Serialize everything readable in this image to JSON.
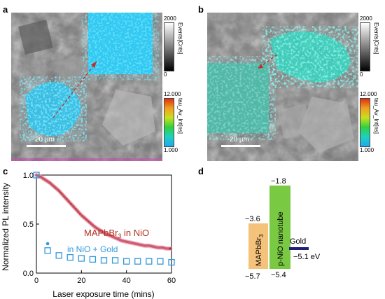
{
  "panels": {
    "a": "a",
    "b": "b",
    "c": "c",
    "d": "d"
  },
  "colorbars": {
    "events_max": "2000",
    "events_min": "0",
    "events_title": "Events[Cnts]",
    "tau_max": "12.000",
    "tau_min": "1.000",
    "tau_title": "tau_Av_Int[ns]"
  },
  "scale_bar_label": "20 µm",
  "chart_data": {
    "type": "scatter",
    "xlabel": "Laser exposure time (mins)",
    "ylabel": "Normalized PL intensity",
    "xlim": [
      0,
      60
    ],
    "ylim": [
      0,
      1.0
    ],
    "xticks": [
      "0",
      "20",
      "40",
      "60"
    ],
    "yticks": [
      "0.0",
      "0.5",
      "1.0"
    ],
    "series": [
      {
        "name": "MAPbBr3 in NiO",
        "color": "#b03020",
        "x": [
          0,
          2,
          4,
          6,
          8,
          10,
          12,
          14,
          16,
          18,
          20,
          22,
          24,
          26,
          28,
          30,
          32,
          34,
          36,
          38,
          40,
          42,
          44,
          46,
          48,
          50,
          52,
          54,
          56,
          58,
          60
        ],
        "values": [
          1.0,
          0.98,
          0.95,
          0.92,
          0.88,
          0.84,
          0.79,
          0.74,
          0.69,
          0.64,
          0.59,
          0.55,
          0.51,
          0.47,
          0.44,
          0.41,
          0.39,
          0.37,
          0.35,
          0.33,
          0.32,
          0.31,
          0.3,
          0.29,
          0.28,
          0.28,
          0.27,
          0.26,
          0.26,
          0.25,
          0.25
        ]
      },
      {
        "name": "in NiO + Gold",
        "color": "#3399dd",
        "x": [
          0,
          5,
          10,
          15,
          20,
          25,
          30,
          35,
          40,
          45,
          50,
          55,
          60
        ],
        "values": [
          1.0,
          0.23,
          0.18,
          0.16,
          0.15,
          0.14,
          0.13,
          0.13,
          0.12,
          0.12,
          0.12,
          0.12,
          0.11
        ]
      }
    ],
    "legend": {
      "mapbbr_prefix": "MAPbBr",
      "mapbbr_sub": "3",
      "mapbbr_suffix": " in NiO",
      "gold_label": "in NiO + Gold"
    }
  },
  "band_diagram": {
    "mapbbr_label_prefix": "MAPbBr",
    "mapbbr_label_sub": "3",
    "nio_label": "p-NiO nanotube",
    "gold_label": "Gold",
    "mapbbr_top": "−3.6",
    "mapbbr_bottom": "−5.7",
    "nio_top": "−1.8",
    "nio_bottom": "−5.4",
    "gold_level": "−5.1 eV",
    "mapbbr_color": "#f4c27a",
    "nio_color": "#7ac943",
    "gold_color": "#1f1f7a"
  }
}
